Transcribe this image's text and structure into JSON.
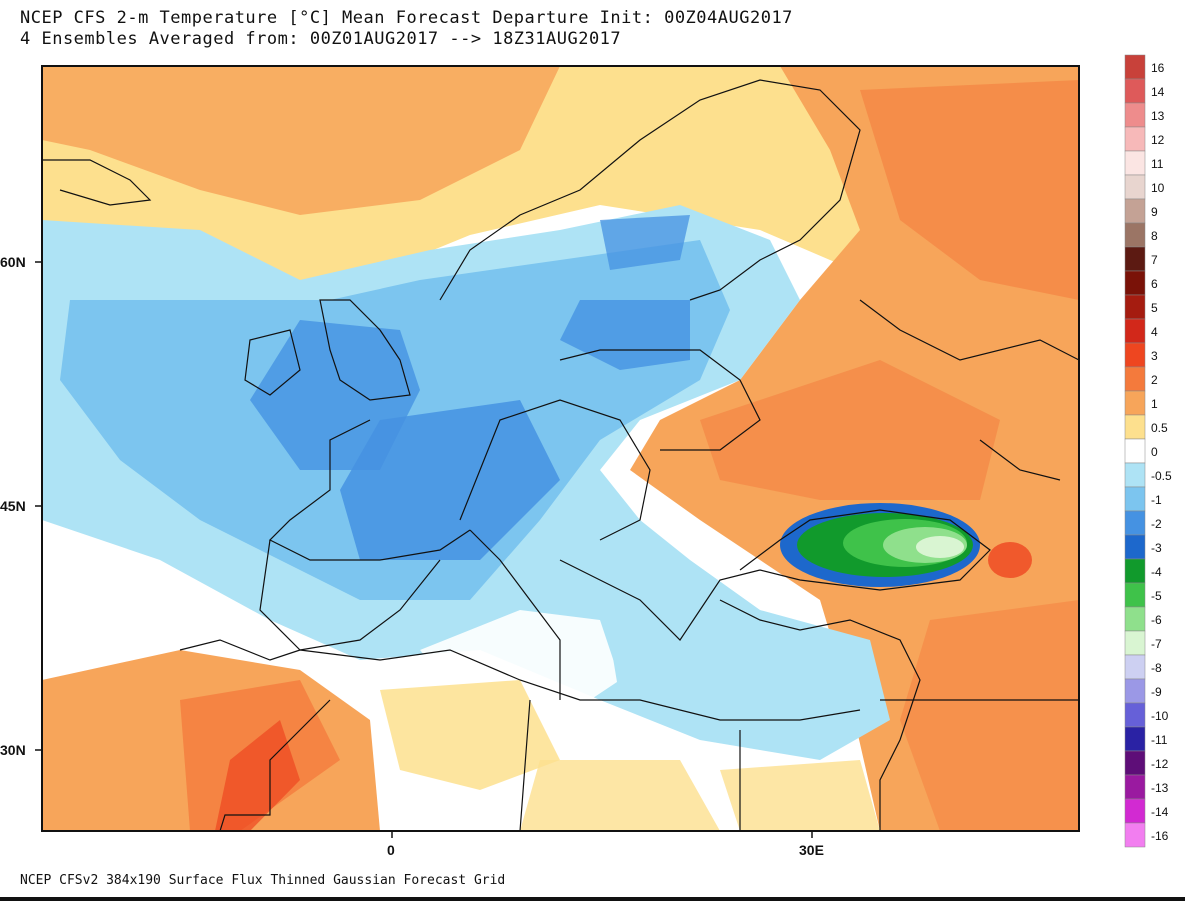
{
  "header": {
    "title_line1": "NCEP CFS 2-m Temperature [°C] Mean Forecast Departure Init: 00Z04AUG2017",
    "title_line2": "4 Ensembles Averaged from: 00Z01AUG2017 --> 18Z31AUG2017"
  },
  "map": {
    "y_ticks": [
      {
        "label": "60N",
        "lat": 60
      },
      {
        "label": "45N",
        "lat": 45
      },
      {
        "label": "30N",
        "lat": 30
      }
    ],
    "x_ticks": [
      {
        "label": "0",
        "lon": 0
      },
      {
        "label": "30E",
        "lon": 30
      }
    ]
  },
  "legend": {
    "entries": [
      {
        "label": "16",
        "color": "#c8413a"
      },
      {
        "label": "14",
        "color": "#de5a5a"
      },
      {
        "label": "13",
        "color": "#ee8c8c"
      },
      {
        "label": "12",
        "color": "#f7b9b9"
      },
      {
        "label": "11",
        "color": "#fbe5e3"
      },
      {
        "label": "10",
        "color": "#e8d5cf"
      },
      {
        "label": "9",
        "color": "#c4a295"
      },
      {
        "label": "8",
        "color": "#9b7565"
      },
      {
        "label": "7",
        "color": "#5c1a12"
      },
      {
        "label": "6",
        "color": "#7a1208"
      },
      {
        "label": "5",
        "color": "#a51c10"
      },
      {
        "label": "4",
        "color": "#d2281a"
      },
      {
        "label": "3",
        "color": "#ee4620"
      },
      {
        "label": "2",
        "color": "#f47a3c"
      },
      {
        "label": "1",
        "color": "#f7a55a"
      },
      {
        "label": "0.5",
        "color": "#fde08e"
      },
      {
        "label": "0",
        "color": "#ffffff"
      },
      {
        "label": "-0.5",
        "color": "#aee3f5"
      },
      {
        "label": "-1",
        "color": "#7cc5ef"
      },
      {
        "label": "-2",
        "color": "#4592e2"
      },
      {
        "label": "-3",
        "color": "#1d68cc"
      },
      {
        "label": "-4",
        "color": "#119a2c"
      },
      {
        "label": "-5",
        "color": "#3fc24a"
      },
      {
        "label": "-6",
        "color": "#8fe08c"
      },
      {
        "label": "-7",
        "color": "#d9f5d2"
      },
      {
        "label": "-8",
        "color": "#cdd0f2"
      },
      {
        "label": "-9",
        "color": "#9b98e6"
      },
      {
        "label": "-10",
        "color": "#6660d8"
      },
      {
        "label": "-11",
        "color": "#2a22a4"
      },
      {
        "label": "-12",
        "color": "#5e0e78"
      },
      {
        "label": "-13",
        "color": "#9a1aa0"
      },
      {
        "label": "-14",
        "color": "#d22ad2"
      },
      {
        "label": "-16",
        "color": "#f27ef0"
      }
    ]
  },
  "footer": {
    "text": "NCEP CFSv2 384x190 Surface Flux Thinned Gaussian Forecast Grid"
  }
}
